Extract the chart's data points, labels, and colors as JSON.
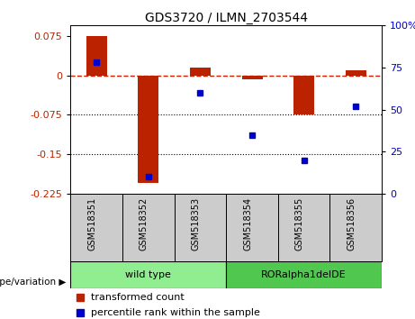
{
  "title": "GDS3720 / ILMN_2703544",
  "samples": [
    "GSM518351",
    "GSM518352",
    "GSM518353",
    "GSM518354",
    "GSM518355",
    "GSM518356"
  ],
  "red_values": [
    0.075,
    -0.205,
    0.015,
    -0.008,
    -0.075,
    0.01
  ],
  "blue_values": [
    78,
    10,
    60,
    35,
    20,
    52
  ],
  "left_ylim": [
    -0.225,
    0.095
  ],
  "right_ylim": [
    0,
    100
  ],
  "left_yticks": [
    0.075,
    0,
    -0.075,
    -0.15,
    -0.225
  ],
  "right_yticks": [
    100,
    75,
    50,
    25,
    0
  ],
  "dotted_lines": [
    -0.075,
    -0.15
  ],
  "groups": [
    {
      "label": "wild type",
      "start": 0,
      "end": 3,
      "color": "#90EE90"
    },
    {
      "label": "RORalpha1delDE",
      "start": 3,
      "end": 6,
      "color": "#50C850"
    }
  ],
  "genotype_label": "genotype/variation",
  "legend_red": "transformed count",
  "legend_blue": "percentile rank within the sample",
  "bar_color": "#BB2200",
  "dot_color": "#0000CC",
  "dashed_line_color": "#CC2200",
  "sample_box_color": "#CCCCCC",
  "title_fontsize": 10,
  "tick_fontsize": 8,
  "sample_fontsize": 7,
  "legend_fontsize": 8
}
